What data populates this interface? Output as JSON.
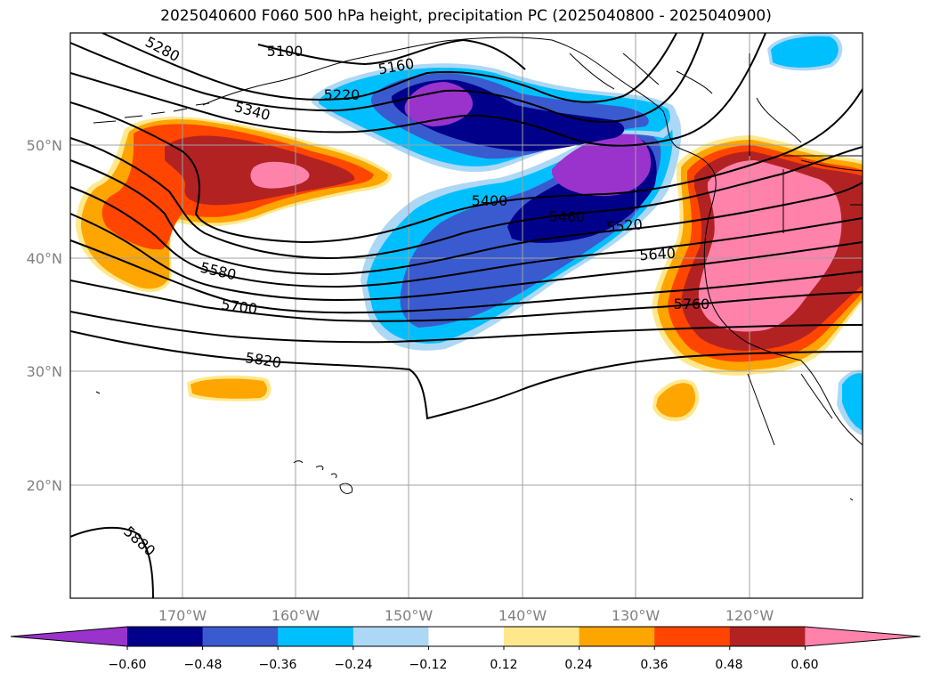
{
  "title": "2025040600 F060 500 hPa height, precipitation PC (2025040800 - 2025040900)",
  "lat_labels": [
    "50°N",
    "40°N",
    "30°N",
    "20°N"
  ],
  "lon_labels": [
    "170°W",
    "160°W",
    "150°W",
    "140°W",
    "130°W",
    "120°W"
  ],
  "contour_labels": [
    "5100",
    "5160",
    "5220",
    "5280",
    "5340",
    "5400",
    "5460",
    "5520",
    "5580",
    "5640",
    "5700",
    "5760",
    "5820",
    "5880"
  ],
  "colorbar": {
    "ticks": [
      "−0.60",
      "−0.48",
      "−0.36",
      "−0.24",
      "−0.12",
      "0.12",
      "0.24",
      "0.36",
      "0.48",
      "0.60"
    ],
    "colors": [
      "#9933cc",
      "#00008b",
      "#3a5bcf",
      "#00bfff",
      "#add8f5",
      "#ffffff",
      "#ffe88c",
      "#ffa500",
      "#ff4500",
      "#b22222",
      "#ff82ab"
    ]
  }
}
